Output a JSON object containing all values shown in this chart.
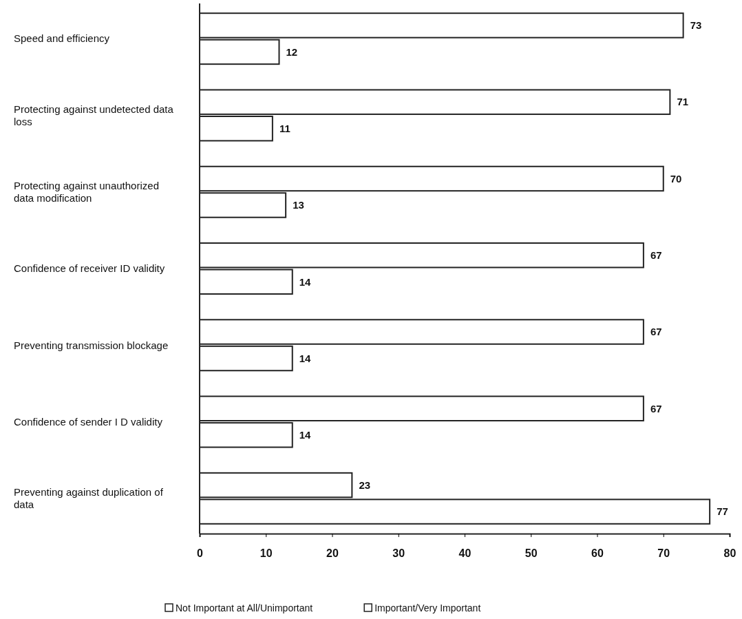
{
  "chart_data": {
    "type": "bar",
    "orientation": "horizontal",
    "categories": [
      "Speed and efficiency",
      "Protecting against undetected data loss",
      "Protecting against unauthorized data modification",
      "Confidence of receiver ID validity",
      "Preventing transmission blockage",
      "Confidence of sender I D validity",
      "Preventing against duplication of data"
    ],
    "series": [
      {
        "name": "Important/Very Important",
        "color": "#ffffff",
        "values": [
          73,
          71,
          70,
          67,
          67,
          67,
          23
        ]
      },
      {
        "name": "Not Important at All/Unimportant",
        "color": "#ffffff",
        "values": [
          12,
          11,
          13,
          14,
          14,
          14,
          77
        ]
      }
    ],
    "xlim": [
      0,
      80
    ],
    "xticks": [
      0,
      10,
      20,
      30,
      40,
      50,
      60,
      70,
      80
    ],
    "data_labels": true,
    "legend": "bottom",
    "grid": false
  }
}
